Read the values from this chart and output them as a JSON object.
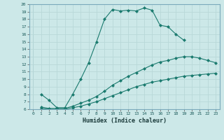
{
  "line1_x": [
    1,
    2,
    3,
    4,
    5,
    6,
    7,
    8,
    9,
    10,
    11,
    12,
    13,
    14,
    15,
    16,
    17,
    18,
    19
  ],
  "line1_y": [
    8.0,
    7.2,
    6.2,
    6.2,
    8.0,
    10.0,
    12.2,
    15.0,
    18.0,
    19.3,
    19.1,
    19.2,
    19.1,
    19.5,
    19.2,
    17.2,
    17.0,
    16.0,
    15.2
  ],
  "line2_x": [
    1,
    2,
    3,
    4,
    5,
    6,
    7,
    8,
    9,
    10,
    11,
    12,
    13,
    14,
    15,
    16,
    17,
    18,
    19,
    20,
    21,
    22,
    23
  ],
  "line2_y": [
    6.3,
    6.1,
    6.1,
    6.1,
    6.4,
    6.8,
    7.2,
    7.7,
    8.4,
    9.2,
    9.8,
    10.4,
    10.9,
    11.4,
    11.9,
    12.3,
    12.5,
    12.8,
    13.0,
    13.0,
    12.8,
    12.5,
    12.2
  ],
  "line3_x": [
    1,
    2,
    3,
    4,
    5,
    6,
    7,
    8,
    9,
    10,
    11,
    12,
    13,
    14,
    15,
    16,
    17,
    18,
    19,
    20,
    21,
    22,
    23
  ],
  "line3_y": [
    6.1,
    6.0,
    6.0,
    6.0,
    6.2,
    6.4,
    6.7,
    7.0,
    7.4,
    7.8,
    8.2,
    8.6,
    9.0,
    9.3,
    9.6,
    9.8,
    10.0,
    10.2,
    10.4,
    10.5,
    10.6,
    10.7,
    10.8
  ],
  "color": "#1a7a6e",
  "bg_color": "#cce8e8",
  "grid_color": "#b0d4d4",
  "xlabel": "Humidex (Indice chaleur)",
  "xlim": [
    -0.5,
    23.5
  ],
  "ylim": [
    6,
    20
  ],
  "xticks": [
    0,
    1,
    2,
    3,
    4,
    5,
    6,
    7,
    8,
    9,
    10,
    11,
    12,
    13,
    14,
    15,
    16,
    17,
    18,
    19,
    20,
    21,
    22,
    23
  ],
  "yticks": [
    6,
    7,
    8,
    9,
    10,
    11,
    12,
    13,
    14,
    15,
    16,
    17,
    18,
    19,
    20
  ],
  "marker": "D",
  "markersize": 2.0,
  "linewidth": 0.8
}
